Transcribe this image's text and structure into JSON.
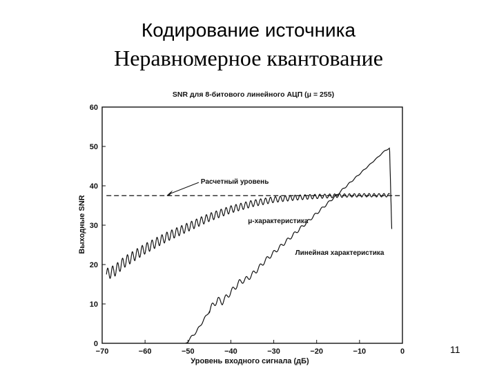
{
  "slide": {
    "title": "Кодирование источника",
    "subtitle": "Неравномерное квантование",
    "page_number": "11"
  },
  "chart_data": {
    "type": "line",
    "title": "SNR для 8-битового линейного АЦП (μ = 255)",
    "xlabel": "Уровень входного сигнала (дБ)",
    "ylabel": "Выходные SNR",
    "xlim": [
      -70,
      0
    ],
    "ylim": [
      0,
      60
    ],
    "x_ticks": [
      -70,
      -60,
      -50,
      -40,
      -30,
      -20,
      -10,
      0
    ],
    "y_ticks": [
      0,
      10,
      20,
      30,
      40,
      50,
      60
    ],
    "grid": false,
    "series": [
      {
        "name": "Расчетный уровень",
        "style": "dashed",
        "x": [
          -69,
          -0.5
        ],
        "y": [
          37.5,
          37.5
        ]
      },
      {
        "name": "μ-характеристика",
        "style": "oscillating",
        "x": [
          -69,
          -67,
          -65,
          -60,
          -55,
          -50,
          -45,
          -40,
          -35,
          -30,
          -25,
          -20,
          -15,
          -10,
          -5,
          -3
        ],
        "y": [
          17.5,
          18.5,
          20.5,
          24,
          27,
          29.5,
          32,
          34,
          35.5,
          36.5,
          37,
          37.3,
          37.5,
          37.6,
          37.6,
          37.6
        ]
      },
      {
        "name": "Линейная характеристика",
        "style": "oscillating",
        "x": [
          -50.5,
          -48,
          -46,
          -44,
          -43,
          -42,
          -40,
          -38,
          -36,
          -34,
          -32,
          -30,
          -28,
          -26,
          -24,
          -22,
          -20,
          -18,
          -16,
          -14,
          -12,
          -10,
          -8,
          -6,
          -4,
          -3,
          -2.5
        ],
        "y": [
          0,
          3,
          6.5,
          10,
          11,
          10.5,
          13,
          15.5,
          16.5,
          18.5,
          21,
          23,
          25,
          27,
          29,
          31,
          33,
          35,
          37,
          39,
          41,
          43,
          45,
          47,
          49,
          49.5,
          29
        ]
      }
    ],
    "annotations": [
      {
        "text": "Расчетный уровень",
        "x": -47,
        "y": 40.5,
        "arrow_to": [
          -55,
          37.5
        ]
      },
      {
        "text": "μ-характеристика",
        "x": -36,
        "y": 30.5
      },
      {
        "text": "Линейная характеристика",
        "x": -25,
        "y": 22.5
      }
    ]
  }
}
